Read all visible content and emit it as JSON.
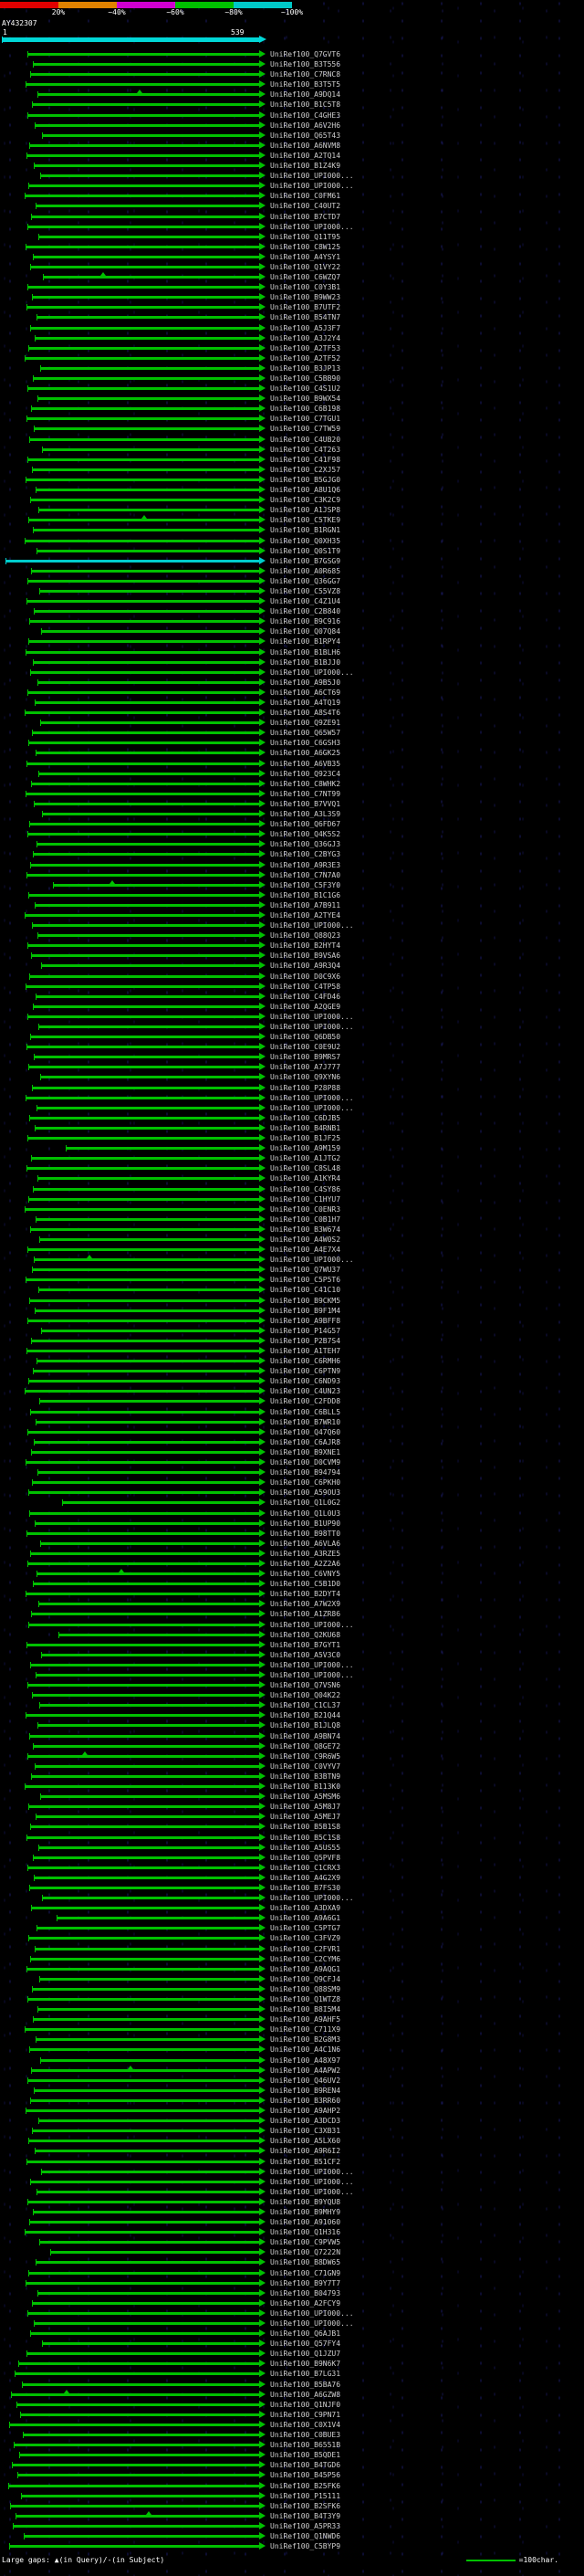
{
  "scale": {
    "segments": [
      {
        "label": "20%",
        "color": "#e00000"
      },
      {
        "label": "~40%",
        "color": "#e08200"
      },
      {
        "label": "~60%",
        "color": "#d000d0"
      },
      {
        "label": "~80%",
        "color": "#00c000"
      },
      {
        "label": "~100%",
        "color": "#00c8c8"
      }
    ]
  },
  "query": {
    "name": "AY432307",
    "start_label": "1",
    "end_label": "539"
  },
  "footer": {
    "gaps_legend": "Large gaps: ▲(in Query)/-(in Subject)",
    "scale_legend": "=100char."
  },
  "colors": {
    "hit_green": "#00c000",
    "hit_cyan": "#00cccc",
    "query_bar": "#00d7d7"
  },
  "hit_label_prefix": "UniRef100_",
  "hits": [
    {
      "acc": "Q7GVT6",
      "s": 30
    },
    {
      "acc": "B3T556",
      "s": 36
    },
    {
      "acc": "C7RNC8",
      "s": 33
    },
    {
      "acc": "B3T5T5",
      "s": 28
    },
    {
      "acc": "A9DQ14",
      "s": 41,
      "g": 150
    },
    {
      "acc": "B1C5T8",
      "s": 35
    },
    {
      "acc": "C4GHE3",
      "s": 30
    },
    {
      "acc": "A6V2H6",
      "s": 38
    },
    {
      "acc": "Q65T43",
      "s": 46
    },
    {
      "acc": "A6NVM8",
      "s": 32
    },
    {
      "acc": "A2TQ14",
      "s": 29
    },
    {
      "acc": "B1Z4K9",
      "s": 37
    },
    {
      "acc": "UPI000...",
      "s": 44
    },
    {
      "acc": "UPI000...",
      "s": 31
    },
    {
      "acc": "C0FM61",
      "s": 27
    },
    {
      "acc": "C40UT2",
      "s": 39
    },
    {
      "acc": "B7CTD7",
      "s": 34
    },
    {
      "acc": "UPI000...",
      "s": 30
    },
    {
      "acc": "Q11T95",
      "s": 42
    },
    {
      "acc": "C8W125",
      "s": 28
    },
    {
      "acc": "A4YSY1",
      "s": 36
    },
    {
      "acc": "Q1VY22",
      "s": 33
    },
    {
      "acc": "C6WZQ7",
      "s": 47,
      "g": 110
    },
    {
      "acc": "C0Y3B1",
      "s": 30
    },
    {
      "acc": "B9WW23",
      "s": 35
    },
    {
      "acc": "B7UTF2",
      "s": 29
    },
    {
      "acc": "B54TN7",
      "s": 40
    },
    {
      "acc": "A5J3F7",
      "s": 33
    },
    {
      "acc": "A3J2Y4",
      "s": 38
    },
    {
      "acc": "A2TF53",
      "s": 31
    },
    {
      "acc": "A2TF52",
      "s": 27
    },
    {
      "acc": "B3JP13",
      "s": 44
    },
    {
      "acc": "C5BB90",
      "s": 36
    },
    {
      "acc": "C4S1U2",
      "s": 30
    },
    {
      "acc": "B9WX54",
      "s": 41
    },
    {
      "acc": "C6B198",
      "s": 34
    },
    {
      "acc": "C7TGU1",
      "s": 29
    },
    {
      "acc": "C7TW59",
      "s": 37
    },
    {
      "acc": "C4UB20",
      "s": 32
    },
    {
      "acc": "C4T263",
      "s": 46
    },
    {
      "acc": "C41F98",
      "s": 30
    },
    {
      "acc": "C2XJ57",
      "s": 35
    },
    {
      "acc": "B5GJG0",
      "s": 28
    },
    {
      "acc": "A8U1Q6",
      "s": 39
    },
    {
      "acc": "C3K2C9",
      "s": 33
    },
    {
      "acc": "A1JSP8",
      "s": 42
    },
    {
      "acc": "C5TKE9",
      "s": 31,
      "g": 155
    },
    {
      "acc": "B1RGN1",
      "s": 36
    },
    {
      "acc": "Q0XH35",
      "s": 27
    },
    {
      "acc": "Q0S1T9",
      "s": 40
    },
    {
      "acc": "B7GSG9",
      "s": 6,
      "c": "cyan"
    },
    {
      "acc": "A0R685",
      "s": 34
    },
    {
      "acc": "Q36GG7",
      "s": 30
    },
    {
      "acc": "C55VZ8",
      "s": 43
    },
    {
      "acc": "C4Z1U4",
      "s": 29
    },
    {
      "acc": "C2B840",
      "s": 37
    },
    {
      "acc": "B9C916",
      "s": 32
    },
    {
      "acc": "Q07Q84",
      "s": 45
    },
    {
      "acc": "B1RPY4",
      "s": 31
    },
    {
      "acc": "B1BLH6",
      "s": 28
    },
    {
      "acc": "B1BJJ0",
      "s": 36
    },
    {
      "acc": "UPI000...",
      "s": 33
    },
    {
      "acc": "A9B5J0",
      "s": 41
    },
    {
      "acc": "A6CT69",
      "s": 30
    },
    {
      "acc": "A4TQ19",
      "s": 38
    },
    {
      "acc": "A8S4T6",
      "s": 27
    },
    {
      "acc": "Q9ZE91",
      "s": 44
    },
    {
      "acc": "Q65W57",
      "s": 35
    },
    {
      "acc": "C6GSH3",
      "s": 31
    },
    {
      "acc": "A6GK25",
      "s": 39
    },
    {
      "acc": "A6VB35",
      "s": 29
    },
    {
      "acc": "Q923C4",
      "s": 42
    },
    {
      "acc": "C8WHK2",
      "s": 34
    },
    {
      "acc": "C7NT99",
      "s": 28
    },
    {
      "acc": "B7VVQ1",
      "s": 37
    },
    {
      "acc": "A3L3S9",
      "s": 46
    },
    {
      "acc": "Q6FD67",
      "s": 32
    },
    {
      "acc": "Q4K5S2",
      "s": 30
    },
    {
      "acc": "Q36GJ3",
      "s": 40
    },
    {
      "acc": "C2BYG3",
      "s": 36
    },
    {
      "acc": "A9R3E3",
      "s": 33
    },
    {
      "acc": "C7N7A0",
      "s": 29
    },
    {
      "acc": "C5F3Y0",
      "s": 58,
      "g": 120
    },
    {
      "acc": "B1C1G6",
      "s": 31
    },
    {
      "acc": "A7B911",
      "s": 38
    },
    {
      "acc": "A2TYE4",
      "s": 27
    },
    {
      "acc": "UPI000...",
      "s": 35
    },
    {
      "acc": "Q88Q23",
      "s": 41
    },
    {
      "acc": "B2HYT4",
      "s": 30
    },
    {
      "acc": "B9VSA6",
      "s": 34
    },
    {
      "acc": "A9R3Q4",
      "s": 45
    },
    {
      "acc": "D0C9X6",
      "s": 32
    },
    {
      "acc": "C4TP58",
      "s": 28
    },
    {
      "acc": "C4FD46",
      "s": 39
    },
    {
      "acc": "A2QGE9",
      "s": 36
    },
    {
      "acc": "UPI000...",
      "s": 30
    },
    {
      "acc": "UPI000...",
      "s": 42
    },
    {
      "acc": "Q6DB50",
      "s": 33
    },
    {
      "acc": "C0E9U2",
      "s": 29
    },
    {
      "acc": "B9MRS7",
      "s": 37
    },
    {
      "acc": "A7J777",
      "s": 31
    },
    {
      "acc": "Q9XYN6",
      "s": 44
    },
    {
      "acc": "P28P88",
      "s": 35
    },
    {
      "acc": "UPI000...",
      "s": 28
    },
    {
      "acc": "UPI000...",
      "s": 40
    },
    {
      "acc": "C6DJB5",
      "s": 32
    },
    {
      "acc": "B4RNB1",
      "s": 38
    },
    {
      "acc": "B1JF25",
      "s": 30
    },
    {
      "acc": "A9M159",
      "s": 72
    },
    {
      "acc": "A1JTG2",
      "s": 34
    },
    {
      "acc": "C8SL48",
      "s": 29
    },
    {
      "acc": "A1KYR4",
      "s": 41
    },
    {
      "acc": "C4SY86",
      "s": 36
    },
    {
      "acc": "C1HYU7",
      "s": 31
    },
    {
      "acc": "C0ENR3",
      "s": 27
    },
    {
      "acc": "C0B1H7",
      "s": 39
    },
    {
      "acc": "B3W674",
      "s": 33
    },
    {
      "acc": "A4W0S2",
      "s": 43
    },
    {
      "acc": "A4E7X4",
      "s": 30
    },
    {
      "acc": "UPI000...",
      "s": 37,
      "g": 95
    },
    {
      "acc": "Q7WU37",
      "s": 35
    },
    {
      "acc": "C5P5T6",
      "s": 28
    },
    {
      "acc": "C41C10",
      "s": 42
    },
    {
      "acc": "B9CKM5",
      "s": 32
    },
    {
      "acc": "B9F1M4",
      "s": 38
    },
    {
      "acc": "A9BFF8",
      "s": 30
    },
    {
      "acc": "P14G57",
      "s": 45
    },
    {
      "acc": "P2B7S4",
      "s": 34
    },
    {
      "acc": "A1TEH7",
      "s": 29
    },
    {
      "acc": "C6RMH6",
      "s": 40
    },
    {
      "acc": "C6PTN9",
      "s": 36
    },
    {
      "acc": "C6ND93",
      "s": 31
    },
    {
      "acc": "C4UN23",
      "s": 27
    },
    {
      "acc": "C2FDD8",
      "s": 43
    },
    {
      "acc": "C6BLL5",
      "s": 33
    },
    {
      "acc": "B7WR10",
      "s": 39
    },
    {
      "acc": "Q47Q60",
      "s": 30
    },
    {
      "acc": "C6AJR8",
      "s": 37
    },
    {
      "acc": "B9XNE1",
      "s": 34
    },
    {
      "acc": "D0CVM9",
      "s": 28
    },
    {
      "acc": "B94794",
      "s": 41
    },
    {
      "acc": "C6PKH0",
      "s": 35
    },
    {
      "acc": "A59OU3",
      "s": 31
    },
    {
      "acc": "Q1L0G2",
      "s": 68
    },
    {
      "acc": "Q1L0U3",
      "s": 32
    },
    {
      "acc": "B1UP90",
      "s": 38
    },
    {
      "acc": "B98TT0",
      "s": 29
    },
    {
      "acc": "A6VLA6",
      "s": 44
    },
    {
      "acc": "A3RZE5",
      "s": 33
    },
    {
      "acc": "A2Z2A6",
      "s": 30
    },
    {
      "acc": "C6VNY5",
      "s": 40,
      "g": 130
    },
    {
      "acc": "C5B1D0",
      "s": 36
    },
    {
      "acc": "B2DYT4",
      "s": 28
    },
    {
      "acc": "A7W2X9",
      "s": 42
    },
    {
      "acc": "A1ZR86",
      "s": 34
    },
    {
      "acc": "UPI000...",
      "s": 31
    },
    {
      "acc": "Q2KU68",
      "s": 64
    },
    {
      "acc": "B7GYT1",
      "s": 29
    },
    {
      "acc": "A5V3C0",
      "s": 45
    },
    {
      "acc": "UPI000...",
      "s": 33
    },
    {
      "acc": "UPI000...",
      "s": 39
    },
    {
      "acc": "Q7VSN6",
      "s": 30
    },
    {
      "acc": "Q04K22",
      "s": 35
    },
    {
      "acc": "C1CL37",
      "s": 43
    },
    {
      "acc": "B21Q44",
      "s": 28
    },
    {
      "acc": "B1JLQ8",
      "s": 41
    },
    {
      "acc": "A9BN74",
      "s": 32
    },
    {
      "acc": "Q8GE72",
      "s": 36
    },
    {
      "acc": "C9R6W5",
      "s": 30,
      "g": 90
    },
    {
      "acc": "C0VYV7",
      "s": 38
    },
    {
      "acc": "B3BTN9",
      "s": 34
    },
    {
      "acc": "B113K0",
      "s": 27
    },
    {
      "acc": "A5MSM6",
      "s": 44
    },
    {
      "acc": "A5M8J7",
      "s": 31
    },
    {
      "acc": "A5MEJ7",
      "s": 39
    },
    {
      "acc": "B5B1S8",
      "s": 33
    },
    {
      "acc": "B5C1S8",
      "s": 29
    },
    {
      "acc": "A5US55",
      "s": 42
    },
    {
      "acc": "Q5PVF8",
      "s": 36
    },
    {
      "acc": "C1CRX3",
      "s": 30
    },
    {
      "acc": "A4G2X9",
      "s": 37
    },
    {
      "acc": "B7FS30",
      "s": 32
    },
    {
      "acc": "UPI000...",
      "s": 46
    },
    {
      "acc": "A3DXA9",
      "s": 34
    },
    {
      "acc": "A9A6G1",
      "s": 62
    },
    {
      "acc": "C5PTG7",
      "s": 40
    },
    {
      "acc": "C3FVZ9",
      "s": 31
    },
    {
      "acc": "C2FVR1",
      "s": 38
    },
    {
      "acc": "C2CYM6",
      "s": 33
    },
    {
      "acc": "A9AQG1",
      "s": 29
    },
    {
      "acc": "Q9CFJ4",
      "s": 43
    },
    {
      "acc": "Q88SM9",
      "s": 35
    },
    {
      "acc": "Q1WTZ8",
      "s": 30
    },
    {
      "acc": "B8I5M4",
      "s": 41
    },
    {
      "acc": "A9AHF5",
      "s": 36
    },
    {
      "acc": "C711X9",
      "s": 27
    },
    {
      "acc": "B2G8M3",
      "s": 39
    },
    {
      "acc": "A4C1N6",
      "s": 32
    },
    {
      "acc": "A48X97",
      "s": 44
    },
    {
      "acc": "A4APW2",
      "s": 34,
      "g": 140
    },
    {
      "acc": "Q46UV2",
      "s": 30
    },
    {
      "acc": "B9REN4",
      "s": 37
    },
    {
      "acc": "B3RR60",
      "s": 33
    },
    {
      "acc": "A9AHP2",
      "s": 28
    },
    {
      "acc": "A3DCD3",
      "s": 42
    },
    {
      "acc": "C3XB31",
      "s": 35
    },
    {
      "acc": "A5LX60",
      "s": 31
    },
    {
      "acc": "A9R6I2",
      "s": 38
    },
    {
      "acc": "B51CF2",
      "s": 29
    },
    {
      "acc": "UPI000...",
      "s": 45
    },
    {
      "acc": "UPI000...",
      "s": 33
    },
    {
      "acc": "UPI000...",
      "s": 40
    },
    {
      "acc": "B9YQU8",
      "s": 30
    },
    {
      "acc": "B9MHY9",
      "s": 36
    },
    {
      "acc": "A91060",
      "s": 32
    },
    {
      "acc": "Q1H316",
      "s": 27
    },
    {
      "acc": "C9PVW5",
      "s": 43
    },
    {
      "acc": "Q7222N",
      "s": 55
    },
    {
      "acc": "B8DW65",
      "s": 39
    },
    {
      "acc": "C71GN9",
      "s": 31
    },
    {
      "acc": "B9Y7T7",
      "s": 28
    },
    {
      "acc": "B04793",
      "s": 41
    },
    {
      "acc": "A2FCY9",
      "s": 35
    },
    {
      "acc": "UPI000...",
      "s": 30
    },
    {
      "acc": "UPI000...",
      "s": 37
    },
    {
      "acc": "Q6AJB1",
      "s": 33
    },
    {
      "acc": "Q57FY4",
      "s": 46
    },
    {
      "acc": "Q1JZU7",
      "s": 29
    },
    {
      "acc": "B9N6K7",
      "s": 20
    },
    {
      "acc": "B7LG31",
      "s": 16
    },
    {
      "acc": "B5BA76",
      "s": 24
    },
    {
      "acc": "A6GZW8",
      "s": 12,
      "g": 70
    },
    {
      "acc": "Q1NJF0",
      "s": 18
    },
    {
      "acc": "C9PN71",
      "s": 22
    },
    {
      "acc": "C0X1V4",
      "s": 10
    },
    {
      "acc": "C0BUE3",
      "s": 25
    },
    {
      "acc": "B6551B",
      "s": 15
    },
    {
      "acc": "B5QDE1",
      "s": 21
    },
    {
      "acc": "B4TGD6",
      "s": 13
    },
    {
      "acc": "B45P56",
      "s": 19
    },
    {
      "acc": "B25FK6",
      "s": 9
    },
    {
      "acc": "P15111",
      "s": 23
    },
    {
      "acc": "B2SFK6",
      "s": 11
    },
    {
      "acc": "B4T3Y9",
      "s": 17,
      "g": 160
    },
    {
      "acc": "A5PR33",
      "s": 14
    },
    {
      "acc": "Q1NWD6",
      "s": 26
    },
    {
      "acc": "C5BYP9",
      "s": 10
    }
  ]
}
